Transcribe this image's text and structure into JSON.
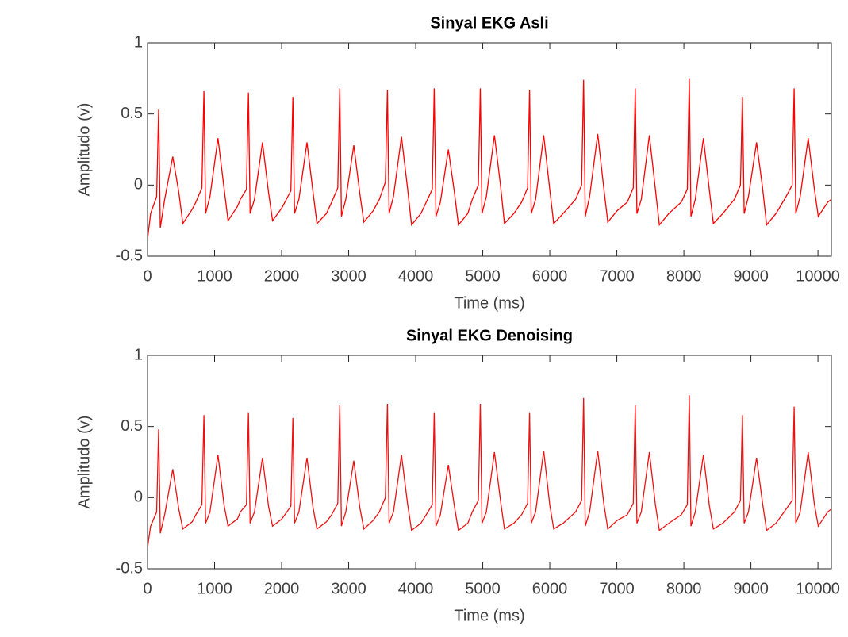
{
  "chart_data": [
    {
      "type": "line",
      "title": "Sinyal EKG Asli",
      "x_label": "Time (ms)",
      "y_label": "Amplitudo (v)",
      "color": "#ff0000",
      "xlim": [
        0,
        10200
      ],
      "xticks": [
        0,
        1000,
        2000,
        3000,
        4000,
        5000,
        6000,
        7000,
        8000,
        9000,
        10000
      ],
      "ylim": [
        -0.5,
        1
      ],
      "yticks": [
        -0.5,
        0,
        0.5,
        1
      ],
      "x": [
        0,
        46,
        136,
        166,
        191,
        256,
        376,
        466,
        526,
        666,
        721,
        811,
        841,
        866,
        931,
        1051,
        1141,
        1201,
        1341,
        1385,
        1475,
        1505,
        1530,
        1595,
        1715,
        1805,
        1865,
        2005,
        2048,
        2138,
        2168,
        2193,
        2258,
        2378,
        2468,
        2528,
        2668,
        2747,
        2837,
        2867,
        2892,
        2957,
        3077,
        3167,
        3227,
        3367,
        3458,
        3548,
        3578,
        3603,
        3668,
        3788,
        3878,
        3938,
        4078,
        4157,
        4247,
        4277,
        4302,
        4367,
        4487,
        4577,
        4637,
        4777,
        4844,
        4934,
        4964,
        4989,
        5054,
        5174,
        5264,
        5324,
        5464,
        5579,
        5669,
        5699,
        5724,
        5789,
        5909,
        5999,
        6059,
        6199,
        6385,
        6475,
        6505,
        6530,
        6595,
        6715,
        6805,
        6865,
        7005,
        7155,
        7245,
        7275,
        7300,
        7365,
        7485,
        7575,
        7635,
        7775,
        7961,
        8051,
        8081,
        8106,
        8171,
        8291,
        8381,
        8441,
        8581,
        8754,
        8844,
        8874,
        8899,
        8964,
        9084,
        9174,
        9234,
        9374,
        9525,
        9615,
        9645,
        9670,
        9735,
        9855,
        9945,
        10005,
        10145,
        10200
      ],
      "values": [
        -0.38,
        -0.2,
        -0.08,
        0.53,
        -0.3,
        -0.1,
        0.2,
        -0.05,
        -0.27,
        -0.17,
        -0.12,
        -0.02,
        0.66,
        -0.2,
        -0.08,
        0.33,
        -0.02,
        -0.25,
        -0.15,
        -0.1,
        -0.03,
        0.65,
        -0.2,
        -0.1,
        0.3,
        -0.05,
        -0.25,
        -0.16,
        -0.12,
        -0.04,
        0.62,
        -0.2,
        -0.1,
        0.3,
        -0.05,
        -0.27,
        -0.2,
        -0.12,
        -0.02,
        0.68,
        -0.22,
        -0.1,
        0.28,
        -0.06,
        -0.26,
        -0.18,
        -0.1,
        0.02,
        0.67,
        -0.2,
        -0.08,
        0.34,
        -0.02,
        -0.28,
        -0.2,
        -0.12,
        -0.03,
        0.68,
        -0.22,
        -0.12,
        0.25,
        -0.05,
        -0.28,
        -0.2,
        -0.1,
        0.0,
        0.68,
        -0.2,
        -0.08,
        0.35,
        0.0,
        -0.27,
        -0.2,
        -0.12,
        -0.02,
        0.67,
        -0.2,
        -0.1,
        0.35,
        -0.03,
        -0.27,
        -0.2,
        -0.1,
        0.0,
        0.74,
        -0.22,
        -0.08,
        0.36,
        -0.02,
        -0.26,
        -0.18,
        -0.12,
        -0.02,
        0.68,
        -0.2,
        -0.1,
        0.35,
        -0.03,
        -0.28,
        -0.2,
        -0.12,
        -0.03,
        0.75,
        -0.22,
        -0.1,
        0.33,
        -0.04,
        -0.27,
        -0.2,
        -0.1,
        0.0,
        0.62,
        -0.2,
        -0.08,
        0.3,
        -0.02,
        -0.28,
        -0.2,
        -0.08,
        0.0,
        0.68,
        -0.2,
        -0.08,
        0.33,
        -0.02,
        -0.22,
        -0.12,
        -0.1
      ]
    },
    {
      "type": "line",
      "title": "Sinyal EKG Denoising",
      "x_label": "Time (ms)",
      "y_label": "Amplitudo (v)",
      "color": "#ee1111",
      "xlim": [
        0,
        10200
      ],
      "xticks": [
        0,
        1000,
        2000,
        3000,
        4000,
        5000,
        6000,
        7000,
        8000,
        9000,
        10000
      ],
      "ylim": [
        -0.5,
        1
      ],
      "yticks": [
        -0.5,
        0,
        0.5,
        1
      ],
      "x": [
        0,
        46,
        136,
        166,
        191,
        256,
        376,
        466,
        526,
        666,
        721,
        811,
        841,
        866,
        931,
        1051,
        1141,
        1201,
        1341,
        1385,
        1475,
        1505,
        1530,
        1595,
        1715,
        1805,
        1865,
        2005,
        2048,
        2138,
        2168,
        2193,
        2258,
        2378,
        2468,
        2528,
        2668,
        2747,
        2837,
        2867,
        2892,
        2957,
        3077,
        3167,
        3227,
        3367,
        3458,
        3548,
        3578,
        3603,
        3668,
        3788,
        3878,
        3938,
        4078,
        4157,
        4247,
        4277,
        4302,
        4367,
        4487,
        4577,
        4637,
        4777,
        4844,
        4934,
        4964,
        4989,
        5054,
        5174,
        5264,
        5324,
        5464,
        5579,
        5669,
        5699,
        5724,
        5789,
        5909,
        5999,
        6059,
        6199,
        6385,
        6475,
        6505,
        6530,
        6595,
        6715,
        6805,
        6865,
        7005,
        7155,
        7245,
        7275,
        7300,
        7365,
        7485,
        7575,
        7635,
        7775,
        7961,
        8051,
        8081,
        8106,
        8171,
        8291,
        8381,
        8441,
        8581,
        8754,
        8844,
        8874,
        8899,
        8964,
        9084,
        9174,
        9234,
        9374,
        9525,
        9615,
        9645,
        9670,
        9735,
        9855,
        9945,
        10005,
        10145,
        10200
      ],
      "values": [
        -0.35,
        -0.2,
        -0.1,
        0.48,
        -0.25,
        -0.12,
        0.2,
        -0.08,
        -0.22,
        -0.17,
        -0.12,
        -0.05,
        0.58,
        -0.18,
        -0.1,
        0.3,
        -0.05,
        -0.2,
        -0.15,
        -0.1,
        -0.05,
        0.6,
        -0.18,
        -0.1,
        0.28,
        -0.06,
        -0.2,
        -0.15,
        -0.12,
        -0.06,
        0.56,
        -0.18,
        -0.1,
        0.28,
        -0.07,
        -0.22,
        -0.17,
        -0.12,
        -0.04,
        0.65,
        -0.2,
        -0.1,
        0.26,
        -0.07,
        -0.22,
        -0.16,
        -0.1,
        0.0,
        0.66,
        -0.18,
        -0.1,
        0.3,
        -0.04,
        -0.23,
        -0.18,
        -0.12,
        -0.05,
        0.6,
        -0.2,
        -0.12,
        0.23,
        -0.06,
        -0.23,
        -0.18,
        -0.1,
        -0.02,
        0.66,
        -0.18,
        -0.1,
        0.32,
        -0.02,
        -0.22,
        -0.18,
        -0.12,
        -0.04,
        0.6,
        -0.18,
        -0.1,
        0.33,
        -0.05,
        -0.22,
        -0.18,
        -0.1,
        -0.02,
        0.7,
        -0.2,
        -0.1,
        0.33,
        -0.04,
        -0.22,
        -0.16,
        -0.12,
        -0.04,
        0.65,
        -0.18,
        -0.1,
        0.32,
        -0.05,
        -0.23,
        -0.18,
        -0.12,
        -0.05,
        0.72,
        -0.2,
        -0.1,
        0.3,
        -0.06,
        -0.22,
        -0.18,
        -0.1,
        -0.02,
        0.58,
        -0.18,
        -0.1,
        0.28,
        -0.04,
        -0.23,
        -0.18,
        -0.08,
        -0.02,
        0.64,
        -0.18,
        -0.1,
        0.32,
        -0.04,
        -0.2,
        -0.1,
        -0.08
      ]
    }
  ]
}
